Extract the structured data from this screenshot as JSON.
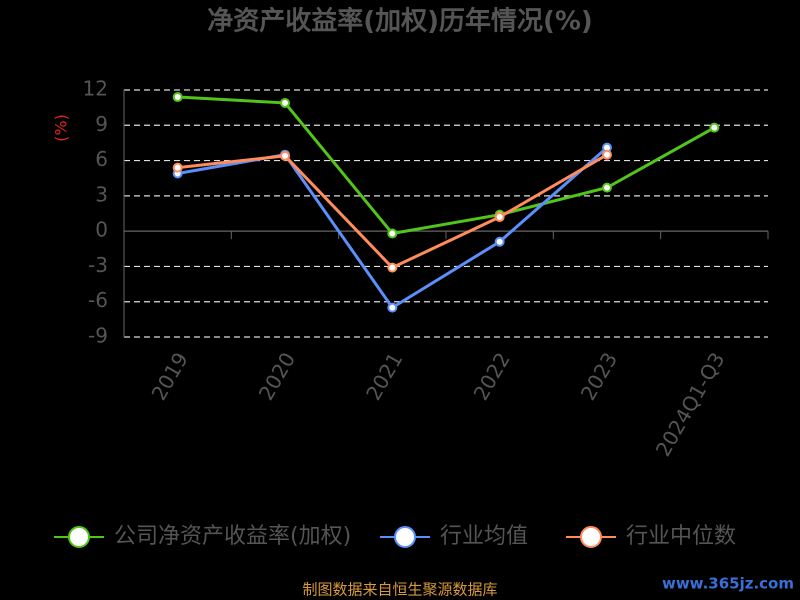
{
  "chart_data": {
    "type": "line",
    "title": "净资产收益率(加权)历年情况(%)",
    "y_label": "(%)",
    "categories": [
      "2019",
      "2020",
      "2021",
      "2022",
      "2023",
      "2024Q1-Q3"
    ],
    "series": [
      {
        "name": "公司净资产收益率(加权)",
        "color": "#52c41a",
        "values": [
          11.4,
          10.9,
          -0.2,
          1.4,
          3.7,
          8.8
        ]
      },
      {
        "name": "行业均值",
        "color": "#5b8ff9",
        "values": [
          4.9,
          6.5,
          -6.5,
          -0.9,
          7.1,
          null
        ]
      },
      {
        "name": "行业中位数",
        "color": "#ff8c5a",
        "values": [
          5.4,
          6.4,
          -3.1,
          1.2,
          6.5,
          null
        ]
      }
    ],
    "ylim": [
      -9,
      12
    ],
    "yticks": [
      12,
      9,
      6,
      3,
      0,
      -3,
      -6,
      -9
    ],
    "grid": true,
    "legend": "bottom",
    "source": "制图数据来自恒生聚源数据库",
    "watermark": "www.365jz.com"
  }
}
